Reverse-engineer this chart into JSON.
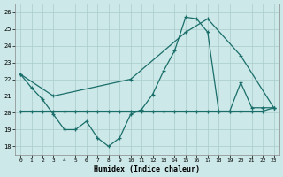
{
  "xlabel": "Humidex (Indice chaleur)",
  "background_color": "#cce8e8",
  "grid_color": "#aacccc",
  "line_color": "#1a6e6a",
  "xlim": [
    -0.5,
    23.5
  ],
  "ylim": [
    17.5,
    26.5
  ],
  "yticks": [
    18,
    19,
    20,
    21,
    22,
    23,
    24,
    25,
    26
  ],
  "xticks": [
    0,
    1,
    2,
    3,
    4,
    5,
    6,
    7,
    8,
    9,
    10,
    11,
    12,
    13,
    14,
    15,
    16,
    17,
    18,
    19,
    20,
    21,
    22,
    23
  ],
  "series1_x": [
    0,
    1,
    2,
    3,
    4,
    5,
    6,
    7,
    8,
    9,
    10,
    11,
    12,
    13,
    14,
    15,
    16,
    17,
    18,
    19,
    20,
    21,
    22,
    23
  ],
  "series1_y": [
    22.3,
    21.5,
    20.8,
    19.9,
    19.0,
    19.0,
    19.5,
    18.5,
    18.0,
    18.5,
    19.9,
    20.2,
    21.1,
    22.5,
    23.7,
    25.7,
    25.6,
    24.8,
    20.1,
    20.1,
    21.8,
    20.3,
    20.3,
    20.3
  ],
  "series2_x": [
    0,
    1,
    2,
    3,
    4,
    5,
    6,
    7,
    8,
    9,
    10,
    11,
    12,
    13,
    14,
    15,
    16,
    17,
    18,
    19,
    20,
    21,
    22,
    23
  ],
  "series2_y": [
    20.1,
    20.1,
    20.1,
    20.1,
    20.1,
    20.1,
    20.1,
    20.1,
    20.1,
    20.1,
    20.1,
    20.1,
    20.1,
    20.1,
    20.1,
    20.1,
    20.1,
    20.1,
    20.1,
    20.1,
    20.1,
    20.1,
    20.1,
    20.3
  ],
  "series3_x": [
    0,
    3,
    10,
    15,
    17,
    20,
    23
  ],
  "series3_y": [
    22.3,
    21.0,
    22.0,
    24.8,
    25.6,
    23.4,
    20.3
  ]
}
